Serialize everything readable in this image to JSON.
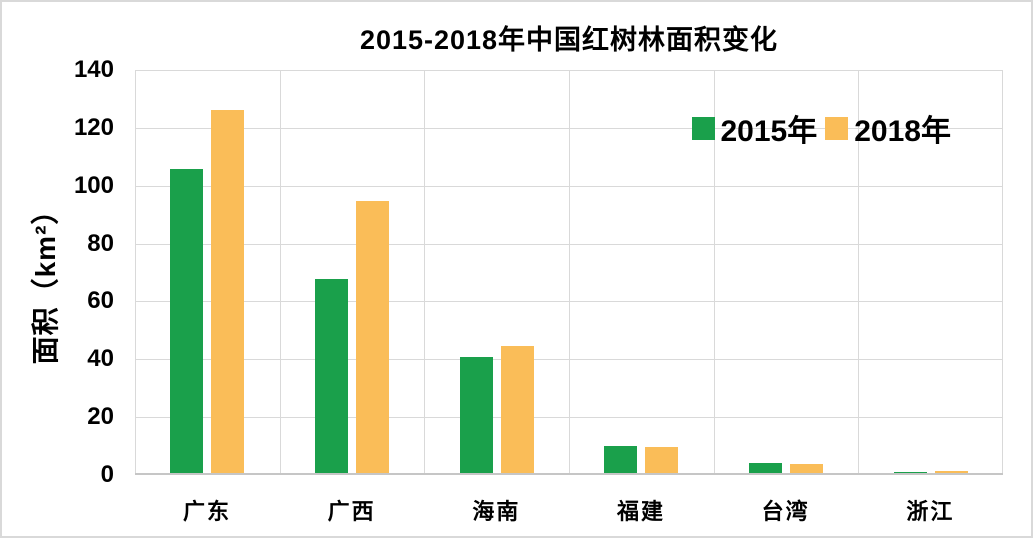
{
  "chart_data": {
    "type": "bar",
    "title": "2015-2018年中国红树林面积变化",
    "ylabel": "面积（km²）",
    "xlabel": "",
    "categories": [
      "广东",
      "广西",
      "海南",
      "福建",
      "台湾",
      "浙江"
    ],
    "series": [
      {
        "name": "2015年",
        "color": "#1aa04b",
        "values": [
          105,
          67,
          40,
          9.5,
          3.5,
          0.2
        ]
      },
      {
        "name": "2018年",
        "color": "#fabd58",
        "values": [
          125.5,
          94,
          44,
          9,
          3,
          0.7
        ]
      }
    ],
    "ylim": [
      0,
      140
    ],
    "ytick_step": 20,
    "ytick_labels": [
      "0",
      "20",
      "40",
      "60",
      "80",
      "100",
      "120",
      "140"
    ],
    "grid": true,
    "gridline_color": "#d9d9d9",
    "axis_line_color": "#c6c6c6",
    "legend_position": "top-right-inside",
    "background_color": "#ffffff",
    "border_color": "#d9d9d9"
  }
}
